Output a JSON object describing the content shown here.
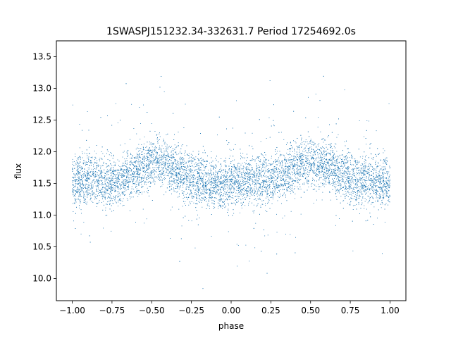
{
  "chart_data": {
    "type": "scatter",
    "title": "1SWASPJ151232.34-332631.7 Period 17254692.0s",
    "xlabel": "phase",
    "ylabel": "flux",
    "xlim": [
      -1.1,
      1.1
    ],
    "ylim": [
      9.65,
      13.75
    ],
    "grid": false,
    "marker_color": "#1f77b4",
    "x_ticks": [
      {
        "value": -1.0,
        "label": "−1.00"
      },
      {
        "value": -0.75,
        "label": "−0.75"
      },
      {
        "value": -0.5,
        "label": "−0.50"
      },
      {
        "value": -0.25,
        "label": "−0.25"
      },
      {
        "value": 0.0,
        "label": "0.00"
      },
      {
        "value": 0.25,
        "label": "0.25"
      },
      {
        "value": 0.5,
        "label": "0.50"
      },
      {
        "value": 0.75,
        "label": "0.75"
      },
      {
        "value": 1.0,
        "label": "1.00"
      }
    ],
    "y_ticks": [
      {
        "value": 10.0,
        "label": "10.0"
      },
      {
        "value": 10.5,
        "label": "10.5"
      },
      {
        "value": 11.0,
        "label": "11.0"
      },
      {
        "value": 11.5,
        "label": "11.5"
      },
      {
        "value": 12.0,
        "label": "12.0"
      },
      {
        "value": 12.5,
        "label": "12.5"
      },
      {
        "value": 13.0,
        "label": "13.0"
      },
      {
        "value": 13.5,
        "label": "13.5"
      }
    ],
    "series": [
      {
        "x": [
          -1.0,
          -0.9,
          -0.8,
          -0.7,
          -0.6,
          -0.5,
          -0.4,
          -0.3,
          -0.2,
          -0.1,
          0.0,
          0.1,
          0.2,
          0.3,
          0.4,
          0.5,
          0.6,
          0.7,
          0.8,
          0.9,
          1.0
        ],
        "y": [
          11.5,
          11.6,
          11.5,
          11.55,
          11.7,
          11.85,
          11.8,
          11.65,
          11.55,
          11.5,
          11.5,
          11.55,
          11.55,
          11.6,
          11.75,
          11.85,
          11.8,
          11.65,
          11.55,
          11.55,
          11.5
        ]
      }
    ]
  }
}
